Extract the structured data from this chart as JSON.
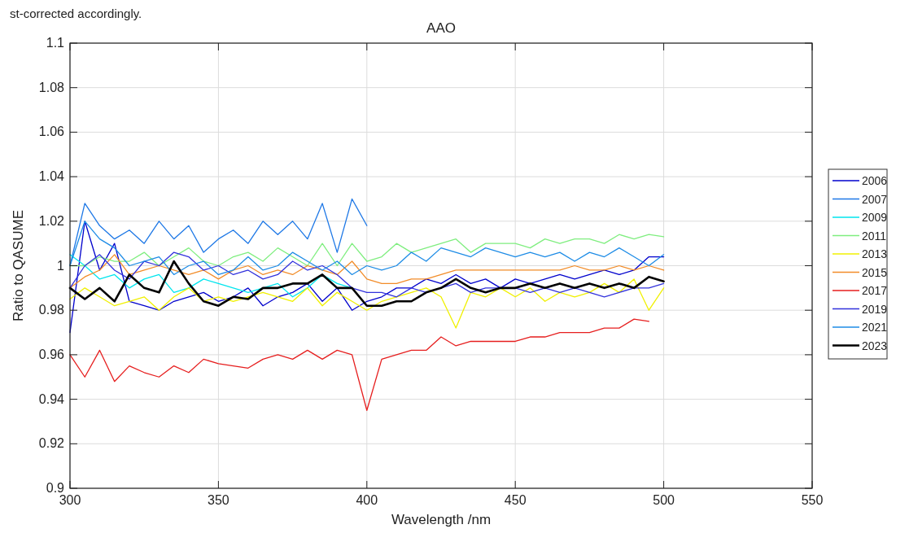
{
  "chart_data": {
    "type": "line",
    "title": "AAO",
    "xlabel": "Wavelength /nm",
    "ylabel": "Ratio to QASUME",
    "annotations": [
      "st-corrected accordingly."
    ],
    "x": [
      300,
      305,
      310,
      315,
      320,
      325,
      330,
      335,
      340,
      345,
      350,
      355,
      360,
      365,
      370,
      375,
      380,
      385,
      390,
      395,
      400,
      405,
      410,
      415,
      420,
      425,
      430,
      435,
      440,
      445,
      450,
      455,
      460,
      465,
      470,
      475,
      480,
      485,
      490,
      495,
      500
    ],
    "xlim": [
      300,
      550
    ],
    "xticks": [
      300,
      350,
      400,
      450,
      500,
      550
    ],
    "ylim": [
      0.9,
      1.1
    ],
    "yticks": [
      0.9,
      0.92,
      0.94,
      0.96,
      0.98,
      1,
      1.02,
      1.04,
      1.06,
      1.08,
      1.1
    ],
    "grid": true,
    "legend": "right",
    "line_style": "solid",
    "series": [
      {
        "name": "2006",
        "color": "#0000cc",
        "values": [
          0.97,
          1.02,
          0.998,
          1.01,
          0.984,
          0.982,
          0.98,
          0.984,
          0.986,
          0.988,
          0.984,
          0.986,
          0.99,
          0.982,
          0.986,
          0.988,
          0.992,
          0.984,
          0.99,
          0.98,
          0.984,
          0.986,
          0.99,
          0.99,
          0.994,
          0.992,
          0.996,
          0.992,
          0.994,
          0.99,
          0.994,
          0.992,
          0.994,
          0.996,
          0.994,
          0.996,
          0.998,
          0.996,
          0.998,
          1.004,
          1.004
        ]
      },
      {
        "name": "2007",
        "color": "#1e78e6",
        "values": [
          1.0,
          1.028,
          1.018,
          1.012,
          1.016,
          1.01,
          1.02,
          1.012,
          1.018,
          1.006,
          1.012,
          1.016,
          1.01,
          1.02,
          1.014,
          1.02,
          1.012,
          1.028,
          1.006,
          1.03,
          1.018,
          null,
          null,
          null,
          null,
          null,
          null,
          null,
          null,
          null,
          null,
          null,
          null,
          null,
          null,
          null,
          null,
          null,
          null,
          null,
          null
        ]
      },
      {
        "name": "2009",
        "color": "#00e5ee",
        "values": [
          1.005,
          1.0,
          0.994,
          0.996,
          0.99,
          0.994,
          0.996,
          0.988,
          0.99,
          0.994,
          0.992,
          0.99,
          0.988,
          0.99,
          0.992,
          0.986,
          0.99,
          0.996,
          0.992,
          0.99,
          null,
          null,
          null,
          null,
          null,
          null,
          null,
          null,
          null,
          null,
          null,
          null,
          null,
          null,
          null,
          null,
          null,
          null,
          null,
          null,
          null
        ]
      },
      {
        "name": "2011",
        "color": "#7fee7f",
        "values": [
          1.0,
          1.0,
          1.004,
          1.002,
          1.002,
          1.006,
          1.0,
          1.004,
          1.008,
          1.002,
          1.0,
          1.004,
          1.006,
          1.002,
          1.008,
          1.004,
          1.0,
          1.01,
          1.0,
          1.01,
          1.002,
          1.004,
          1.01,
          1.006,
          1.008,
          1.01,
          1.012,
          1.006,
          1.01,
          1.01,
          1.01,
          1.008,
          1.012,
          1.01,
          1.012,
          1.012,
          1.01,
          1.014,
          1.012,
          1.014,
          1.013
        ]
      },
      {
        "name": "2013",
        "color": "#f0f000",
        "values": [
          0.985,
          0.99,
          0.986,
          0.982,
          0.984,
          0.986,
          0.98,
          0.986,
          0.99,
          0.984,
          0.986,
          0.984,
          0.986,
          0.988,
          0.986,
          0.984,
          0.99,
          0.982,
          0.988,
          0.984,
          0.98,
          0.984,
          0.986,
          0.988,
          0.99,
          0.986,
          0.972,
          0.988,
          0.986,
          0.99,
          0.986,
          0.99,
          0.984,
          0.988,
          0.986,
          0.988,
          0.992,
          0.988,
          0.994,
          0.98,
          0.99
        ]
      },
      {
        "name": "2015",
        "color": "#f28c28",
        "values": [
          0.99,
          0.995,
          0.998,
          1.005,
          0.996,
          0.998,
          1.0,
          0.998,
          0.996,
          0.998,
          0.994,
          0.998,
          1.0,
          0.996,
          0.998,
          0.996,
          1.0,
          0.998,
          0.996,
          1.002,
          0.994,
          0.992,
          0.992,
          0.994,
          0.994,
          0.996,
          0.998,
          0.998,
          0.998,
          0.998,
          0.998,
          0.998,
          0.998,
          0.998,
          1.0,
          0.998,
          0.998,
          1.0,
          0.998,
          1.0,
          0.998
        ]
      },
      {
        "name": "2017",
        "color": "#e61e1e",
        "values": [
          0.96,
          0.95,
          0.962,
          0.948,
          0.955,
          0.952,
          0.95,
          0.955,
          0.952,
          0.958,
          0.956,
          0.955,
          0.954,
          0.958,
          0.96,
          0.958,
          0.962,
          0.958,
          0.962,
          0.96,
          0.935,
          0.958,
          0.96,
          0.962,
          0.962,
          0.968,
          0.964,
          0.966,
          0.966,
          0.966,
          0.966,
          0.968,
          0.968,
          0.97,
          0.97,
          0.97,
          0.972,
          0.972,
          0.976,
          0.975,
          null
        ]
      },
      {
        "name": "2019",
        "color": "#3232dc",
        "values": [
          0.99,
          1.0,
          1.005,
          0.998,
          0.994,
          1.002,
          1.0,
          1.006,
          1.004,
          0.998,
          1.0,
          0.996,
          0.998,
          0.994,
          0.996,
          1.002,
          0.998,
          1.0,
          0.996,
          0.99,
          0.988,
          0.988,
          0.986,
          0.99,
          0.988,
          0.99,
          0.992,
          0.988,
          0.99,
          0.99,
          0.99,
          0.988,
          0.99,
          0.988,
          0.99,
          0.988,
          0.986,
          0.988,
          0.99,
          0.99,
          0.992
        ]
      },
      {
        "name": "2021",
        "color": "#1e8ce6",
        "values": [
          1.0,
          1.02,
          1.012,
          1.008,
          1.0,
          1.002,
          1.004,
          0.996,
          1.0,
          1.002,
          0.996,
          0.998,
          1.004,
          0.998,
          1.0,
          1.006,
          1.002,
          0.998,
          1.002,
          0.996,
          1.0,
          0.998,
          1.0,
          1.006,
          1.002,
          1.008,
          1.006,
          1.004,
          1.008,
          1.006,
          1.004,
          1.006,
          1.004,
          1.006,
          1.002,
          1.006,
          1.004,
          1.008,
          1.004,
          1.0,
          1.005
        ]
      },
      {
        "name": "2023",
        "color": "#000000",
        "values": [
          0.99,
          0.985,
          0.99,
          0.984,
          0.996,
          0.99,
          0.988,
          1.002,
          0.992,
          0.984,
          0.982,
          0.986,
          0.985,
          0.99,
          0.99,
          0.992,
          0.992,
          0.996,
          0.99,
          0.99,
          0.982,
          0.982,
          0.984,
          0.984,
          0.988,
          0.99,
          0.994,
          0.99,
          0.988,
          0.99,
          0.99,
          0.992,
          0.99,
          0.992,
          0.99,
          0.992,
          0.99,
          0.992,
          0.99,
          0.995,
          0.993
        ]
      }
    ]
  }
}
